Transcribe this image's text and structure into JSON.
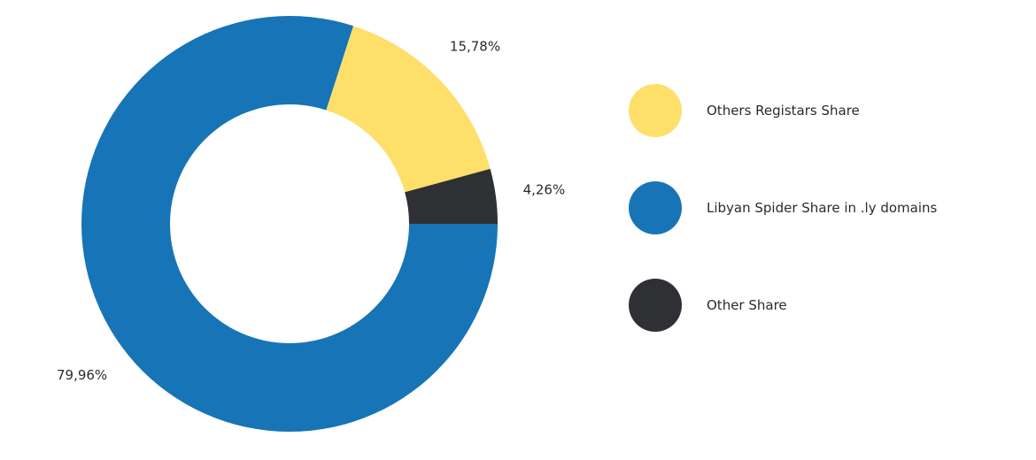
{
  "chart_data": {
    "type": "pie",
    "style": "donut",
    "title": "",
    "legend_position": "right",
    "slices": [
      {
        "name": "Libyan Spider Share in .ly domains",
        "value": 79.96,
        "label": "79,96%",
        "color": "#1674b7"
      },
      {
        "name": "Others Registars Share",
        "value": 15.78,
        "label": "15,78%",
        "color": "#fddf6a"
      },
      {
        "name": "Other Share",
        "value": 4.26,
        "label": "4,26%",
        "color": "#2f3033"
      }
    ],
    "legend": [
      {
        "label": "Others Registars Share",
        "color": "#fddf6a"
      },
      {
        "label": "Libyan Spider Share in .ly domains",
        "color": "#1674b7"
      },
      {
        "label": "Other Share",
        "color": "#2f3033"
      }
    ]
  }
}
